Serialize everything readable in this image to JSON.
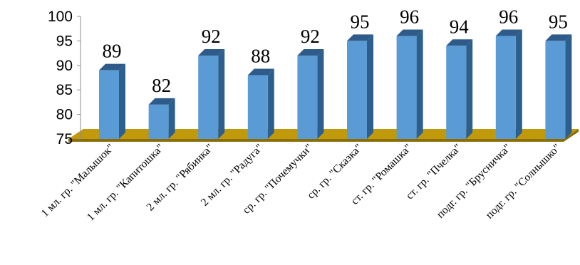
{
  "chart_data": {
    "type": "bar",
    "categories": [
      "1 мл. гр. \"Малышок\"",
      "1 мл. гр. \"Капитошка\"",
      "2 мл. гр. \"Рябинка\"",
      "2 мл. гр. \"Радуга\"",
      "ср. гр. \"Почемучки\"",
      "ср. гр. \"Сказка\"",
      "ст. гр. \"Ромашка\"",
      "ст. гр. \"Пчелка\"",
      "подг. гр. \"Брусничка\"",
      "подг. гр. \"Солнышко\""
    ],
    "values": [
      89,
      82,
      92,
      88,
      92,
      95,
      96,
      94,
      96,
      95
    ],
    "data_labels": [
      "89",
      "82",
      "92",
      "88",
      "92",
      "95",
      "96",
      "94",
      "96",
      "95"
    ],
    "y_ticks": [
      "75",
      "80",
      "85",
      "90",
      "95",
      "100"
    ],
    "ylim": [
      75,
      100
    ],
    "grid": false,
    "legend": "none",
    "title": "",
    "xlabel": "",
    "ylabel": "",
    "colors": {
      "bar_front": "#5b9bd5",
      "bar_side": "#2d5f8e",
      "bar_top": "#2f5b8a",
      "floor_top": "#c09a0a",
      "floor_side": "#8a6d05"
    }
  }
}
